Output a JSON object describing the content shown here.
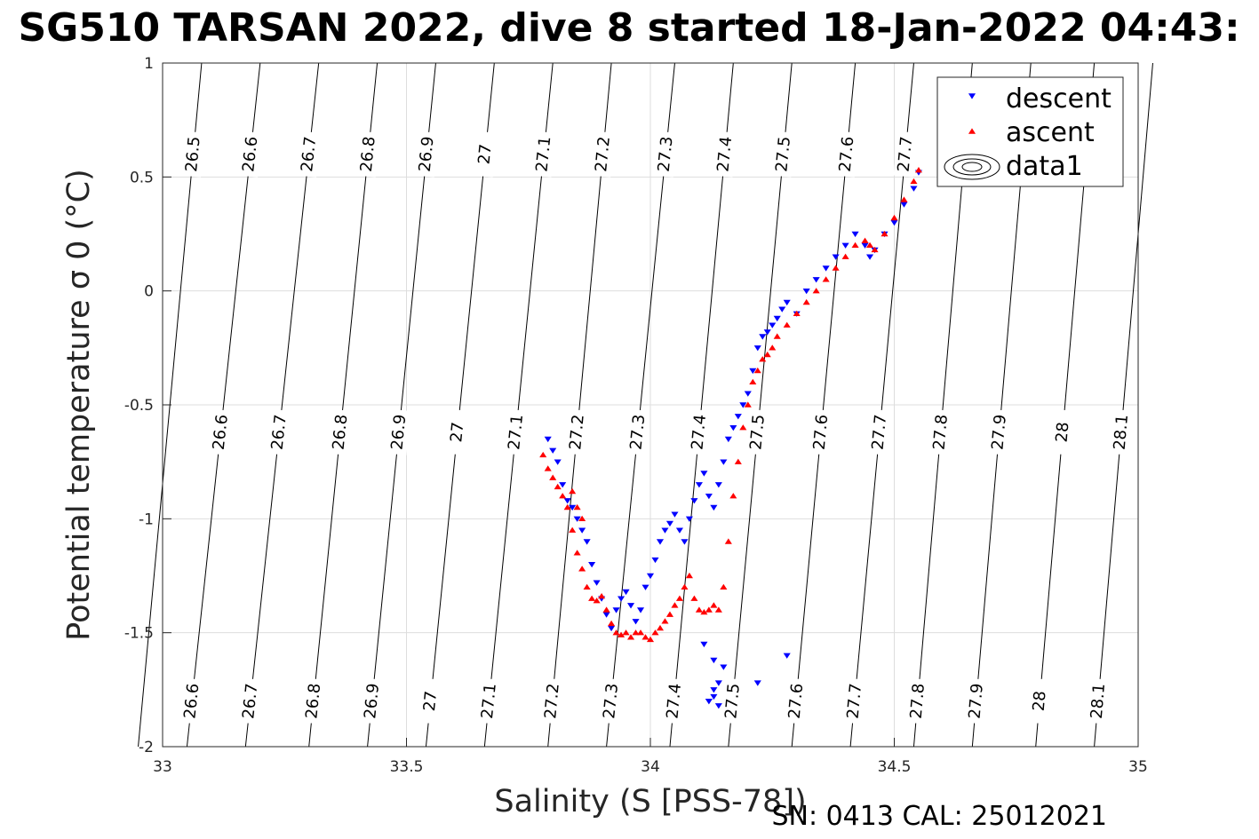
{
  "chart_data": {
    "type": "scatter",
    "title": "SG510 TARSAN 2022, dive 8 started 18-Jan-2022 04:43:",
    "xlabel": "Salinity (S [PSS-78])",
    "ylabel": "Potential temperature σ 0 (°C)",
    "xlim": [
      33,
      35
    ],
    "ylim": [
      -2,
      1
    ],
    "xticks": [
      "33",
      "33.5",
      "34",
      "34.5",
      "35"
    ],
    "yticks": [
      "1",
      "0.5",
      "0",
      "-0.5",
      "-1",
      "-1.5",
      "-2"
    ],
    "grid": true,
    "legend_position": "top-right",
    "legend": [
      "descent",
      "ascent",
      "data1"
    ],
    "footer": "SN: 0413  CAL: 25012021",
    "density_contours": {
      "levels": [
        26.5,
        26.6,
        26.7,
        26.8,
        26.9,
        27.0,
        27.1,
        27.2,
        27.3,
        27.4,
        27.5,
        27.6,
        27.7,
        27.8,
        27.9,
        28.0,
        28.1
      ],
      "labels": [
        "26.5",
        "26.6",
        "26.7",
        "26.8",
        "26.9",
        "27",
        "27.1",
        "27.2",
        "27.3",
        "27.4",
        "27.5",
        "27.6",
        "27.7",
        "27.8",
        "27.9",
        "28",
        "28.1"
      ],
      "s_at_top": [
        33.08,
        33.2,
        33.32,
        33.44,
        33.56,
        33.68,
        33.8,
        33.92,
        34.05,
        34.17,
        34.29,
        34.42,
        34.54,
        34.66,
        34.78,
        34.91,
        35.03
      ],
      "s_at_bottom": [
        32.95,
        33.05,
        33.17,
        33.3,
        33.42,
        33.54,
        33.66,
        33.79,
        33.91,
        34.04,
        34.16,
        34.29,
        34.41,
        34.54,
        34.66,
        34.79,
        34.91
      ]
    },
    "series": [
      {
        "name": "descent",
        "marker": "triangle-down",
        "color": "#0000ff",
        "x": [
          33.79,
          33.8,
          33.81,
          33.82,
          33.83,
          33.84,
          33.85,
          33.86,
          33.87,
          33.88,
          33.89,
          33.9,
          33.91,
          33.92,
          33.93,
          33.94,
          33.95,
          33.96,
          33.97,
          33.98,
          33.99,
          34.0,
          34.01,
          34.02,
          34.03,
          34.04,
          34.05,
          34.06,
          34.07,
          34.08,
          34.09,
          34.1,
          34.11,
          34.12,
          34.13,
          34.14,
          34.15,
          34.16,
          34.17,
          34.18,
          34.19,
          34.2,
          34.21,
          34.22,
          34.23,
          34.24,
          34.25,
          34.26,
          34.27,
          34.28,
          34.3,
          34.32,
          34.34,
          34.36,
          34.38,
          34.4,
          34.42,
          34.44,
          34.45,
          34.46,
          34.48,
          34.5,
          34.52,
          34.54,
          34.55,
          34.12,
          34.13,
          34.14,
          34.13,
          34.12,
          34.14,
          34.15,
          34.11,
          34.13,
          34.22,
          34.28
        ],
        "y": [
          -0.65,
          -0.7,
          -0.75,
          -0.85,
          -0.92,
          -0.95,
          -1.0,
          -1.05,
          -1.1,
          -1.2,
          -1.28,
          -1.35,
          -1.42,
          -1.48,
          -1.4,
          -1.35,
          -1.32,
          -1.38,
          -1.45,
          -1.4,
          -1.3,
          -1.25,
          -1.18,
          -1.1,
          -1.05,
          -1.02,
          -0.98,
          -1.05,
          -1.1,
          -1.0,
          -0.92,
          -0.85,
          -0.8,
          -0.9,
          -0.95,
          -0.85,
          -0.75,
          -0.65,
          -0.6,
          -0.55,
          -0.5,
          -0.45,
          -0.35,
          -0.25,
          -0.2,
          -0.18,
          -0.15,
          -0.12,
          -0.08,
          -0.05,
          -0.1,
          0.0,
          0.05,
          0.1,
          0.15,
          0.2,
          0.25,
          0.2,
          0.15,
          0.18,
          0.25,
          0.3,
          0.38,
          0.45,
          0.52,
          -1.8,
          -1.75,
          -1.82,
          -1.78,
          -1.8,
          -1.72,
          -1.65,
          -1.55,
          -1.62,
          -1.72,
          -1.6
        ]
      },
      {
        "name": "ascent",
        "marker": "triangle-up",
        "color": "#ff0000",
        "x": [
          33.78,
          33.79,
          33.8,
          33.81,
          33.82,
          33.83,
          33.84,
          33.85,
          33.86,
          33.87,
          33.88,
          33.89,
          33.9,
          33.91,
          33.92,
          33.93,
          33.94,
          33.95,
          33.96,
          33.97,
          33.98,
          33.99,
          34.0,
          34.01,
          34.02,
          34.03,
          34.04,
          34.05,
          34.06,
          34.07,
          34.08,
          34.09,
          34.1,
          34.11,
          34.12,
          34.13,
          34.14,
          34.15,
          34.16,
          34.17,
          34.18,
          34.19,
          34.2,
          34.21,
          34.22,
          34.23,
          34.24,
          34.25,
          34.26,
          34.28,
          34.3,
          34.32,
          34.34,
          34.36,
          34.38,
          34.4,
          34.42,
          34.44,
          34.45,
          34.46,
          34.48,
          34.5,
          34.52,
          34.54,
          34.55,
          33.84,
          33.85,
          33.86
        ],
        "y": [
          -0.72,
          -0.78,
          -0.82,
          -0.86,
          -0.9,
          -0.95,
          -1.05,
          -1.15,
          -1.22,
          -1.3,
          -1.35,
          -1.36,
          -1.34,
          -1.4,
          -1.46,
          -1.5,
          -1.51,
          -1.5,
          -1.52,
          -1.5,
          -1.5,
          -1.52,
          -1.53,
          -1.5,
          -1.48,
          -1.45,
          -1.42,
          -1.38,
          -1.35,
          -1.3,
          -1.25,
          -1.35,
          -1.4,
          -1.41,
          -1.4,
          -1.38,
          -1.4,
          -1.3,
          -1.1,
          -0.9,
          -0.75,
          -0.6,
          -0.5,
          -0.4,
          -0.35,
          -0.3,
          -0.28,
          -0.25,
          -0.2,
          -0.15,
          -0.1,
          -0.05,
          0.0,
          0.05,
          0.1,
          0.15,
          0.2,
          0.22,
          0.2,
          0.18,
          0.25,
          0.32,
          0.4,
          0.48,
          0.53,
          -0.88,
          -0.95,
          -1.0
        ]
      }
    ]
  }
}
